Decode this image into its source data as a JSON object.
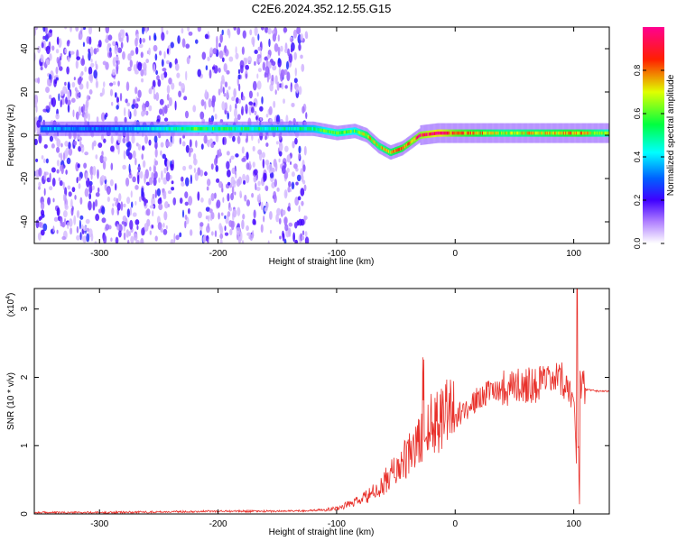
{
  "title": "C2E6.2024.352.12.55.G15",
  "chart_data": [
    {
      "type": "heatmap",
      "xlabel": "Height of straight line (km)",
      "ylabel": "Frequency (Hz)",
      "xlim": [
        -355,
        130
      ],
      "ylim": [
        -50,
        50
      ],
      "xticks": [
        -300,
        -200,
        -100,
        0,
        100
      ],
      "yticks": [
        -40,
        -20,
        0,
        20,
        40
      ],
      "colorbar": {
        "label": "Normalized spectral amplitude",
        "range": [
          0,
          1
        ],
        "ticks": [
          0.0,
          0.2,
          0.4,
          0.6,
          0.8
        ],
        "tick_labels": [
          "0.0",
          "0.2",
          "0.4",
          "0.6",
          "0.8"
        ],
        "colormap": [
          "#ffffff",
          "#8000ff",
          "#0000ff",
          "#00ffff",
          "#00ff00",
          "#ffff00",
          "#ff0000",
          "#ff00ff"
        ]
      },
      "ridge": [
        {
          "x": -350,
          "f": 3,
          "amp": 0.35
        },
        {
          "x": -300,
          "f": 3,
          "amp": 0.3
        },
        {
          "x": -260,
          "f": 3,
          "amp": 0.4
        },
        {
          "x": -220,
          "f": 3,
          "amp": 0.55
        },
        {
          "x": -180,
          "f": 3,
          "amp": 0.5
        },
        {
          "x": -140,
          "f": 3,
          "amp": 0.45
        },
        {
          "x": -120,
          "f": 3,
          "amp": 0.5
        },
        {
          "x": -100,
          "f": 1,
          "amp": 0.6
        },
        {
          "x": -85,
          "f": 2,
          "amp": 0.55
        },
        {
          "x": -75,
          "f": 0,
          "amp": 0.7
        },
        {
          "x": -65,
          "f": -5,
          "amp": 0.65
        },
        {
          "x": -55,
          "f": -8,
          "amp": 0.7
        },
        {
          "x": -45,
          "f": -6,
          "amp": 0.75
        },
        {
          "x": -30,
          "f": 0,
          "amp": 0.85
        },
        {
          "x": -15,
          "f": 1,
          "amp": 0.95
        },
        {
          "x": 0,
          "f": 1,
          "amp": 0.8
        },
        {
          "x": 40,
          "f": 1,
          "amp": 0.65
        },
        {
          "x": 80,
          "f": 1,
          "amp": 0.7
        },
        {
          "x": 100,
          "f": 1,
          "amp": 0.75
        },
        {
          "x": 130,
          "f": 1,
          "amp": 0.6
        }
      ]
    },
    {
      "type": "line",
      "xlabel": "Height of straight line (km)",
      "ylabel": "SNR (10 * v/v)",
      "y_multiplier": "(x10",
      "y_multiplier_exp": "4",
      "y_multiplier_close": ")",
      "xlim": [
        -355,
        130
      ],
      "ylim": [
        0,
        3.3
      ],
      "xticks": [
        -300,
        -200,
        -100,
        0,
        100
      ],
      "yticks": [
        0,
        1,
        2,
        3
      ],
      "color": "#e8302a",
      "series": [
        {
          "x": [
            -355,
            -300,
            -250,
            -200,
            -180,
            -150,
            -120,
            -100,
            -80,
            -60,
            -50,
            -40,
            -30,
            -20,
            -10,
            0,
            10,
            20,
            30,
            40,
            50,
            60,
            70,
            80,
            90,
            95,
            100,
            103,
            105,
            110,
            120,
            130
          ],
          "values": [
            0.02,
            0.02,
            0.03,
            0.04,
            0.04,
            0.04,
            0.05,
            0.08,
            0.2,
            0.4,
            0.55,
            0.7,
            0.9,
            1.1,
            1.3,
            1.4,
            1.55,
            1.7,
            1.8,
            1.85,
            1.87,
            1.9,
            1.9,
            1.92,
            1.95,
            1.9,
            1.7,
            0.3,
            1.85,
            1.82,
            1.8,
            1.8
          ]
        }
      ]
    }
  ]
}
